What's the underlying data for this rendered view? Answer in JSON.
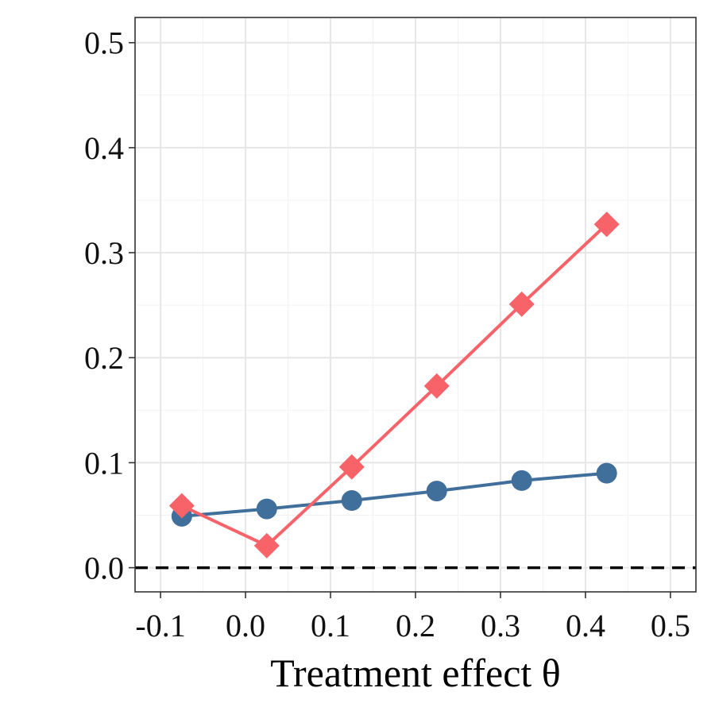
{
  "chart_data": {
    "type": "line",
    "title": "",
    "xlabel": "Treatment effect θ",
    "ylabel": "",
    "xlim": [
      -0.13,
      0.53
    ],
    "ylim": [
      -0.023,
      0.524
    ],
    "xticks": [
      -0.1,
      0.0,
      0.1,
      0.2,
      0.3,
      0.4,
      0.5
    ],
    "xtick_labels": [
      "-0.1",
      "0.0",
      "0.1",
      "0.2",
      "0.3",
      "0.4",
      "0.5"
    ],
    "yticks": [
      0.0,
      0.1,
      0.2,
      0.3,
      0.4,
      0.5
    ],
    "ytick_labels": [
      "0.0",
      "0.1",
      "0.2",
      "0.3",
      "0.4",
      "0.5"
    ],
    "grid": true,
    "reference_line": {
      "y": 0.0,
      "style": "dashed",
      "color": "#000000"
    },
    "x": [
      -0.075,
      0.025,
      0.125,
      0.225,
      0.325,
      0.425
    ],
    "series": [
      {
        "name": "blue",
        "color": "#3F6F9A",
        "marker": "circle",
        "values": [
          0.049,
          0.056,
          0.064,
          0.073,
          0.083,
          0.09
        ]
      },
      {
        "name": "red",
        "color": "#F8636A",
        "marker": "diamond",
        "values": [
          0.059,
          0.021,
          0.096,
          0.173,
          0.251,
          0.327
        ]
      }
    ]
  }
}
